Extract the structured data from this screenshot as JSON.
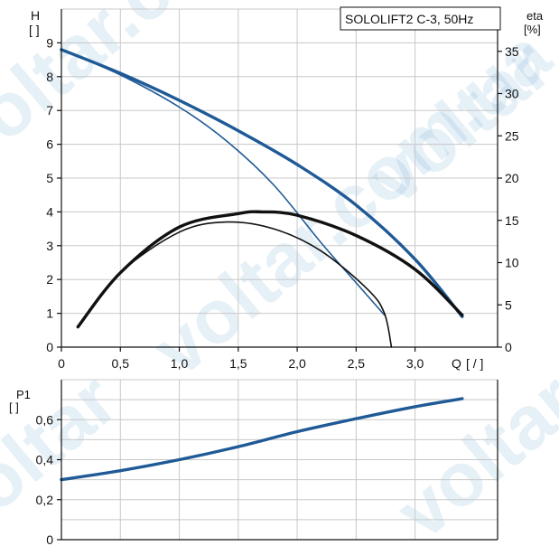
{
  "colors": {
    "blue": "#1f5a96",
    "black": "#111111",
    "grid": "#c8c8c8",
    "watermark": "#4a90c8"
  },
  "watermark_text": "voltar.com.ua",
  "chart_data": [
    {
      "type": "line",
      "title": "SOLOLIFT2 C-3, 50Hz",
      "xlabel": "Q",
      "xunit": "[ / ]",
      "ylabel": "H",
      "yunit": "[ ]",
      "y2label": "eta",
      "y2unit": "[%]",
      "xlim": [
        0,
        3.7
      ],
      "ylim": [
        0,
        10
      ],
      "y2lim": [
        0,
        40
      ],
      "x_ticks": [
        "0",
        "0,5",
        "1,0",
        "1,5",
        "2,0",
        "2,5",
        "3,0"
      ],
      "y_ticks": [
        "0",
        "1",
        "2",
        "3",
        "4",
        "5",
        "6",
        "7",
        "8",
        "9"
      ],
      "y2_ticks": [
        "0",
        "5",
        "10",
        "15",
        "20",
        "25",
        "30",
        "35"
      ],
      "grid": true,
      "series": [
        {
          "axis": "left",
          "color": "#1f5a96",
          "width": 3.4,
          "x": [
            0,
            0.5,
            1.0,
            1.5,
            2.0,
            2.5,
            3.0,
            3.4
          ],
          "y": [
            8.8,
            8.1,
            7.3,
            6.4,
            5.4,
            4.2,
            2.6,
            0.9
          ]
        },
        {
          "axis": "left",
          "color": "#1f5a96",
          "width": 1.6,
          "x": [
            0,
            0.5,
            1.0,
            1.4,
            1.8,
            2.2,
            2.5,
            2.74
          ],
          "y": [
            8.8,
            8.05,
            7.1,
            6.1,
            4.8,
            3.1,
            1.9,
            0.95
          ]
        },
        {
          "axis": "right",
          "color": "#111111",
          "width": 3.4,
          "x": [
            0.14,
            0.5,
            1.0,
            1.5,
            1.7,
            2.0,
            2.5,
            3.0,
            3.4
          ],
          "y": [
            2.4,
            8.8,
            14.2,
            15.8,
            16.0,
            15.6,
            13.2,
            9.2,
            3.8
          ]
        },
        {
          "axis": "right",
          "color": "#111111",
          "width": 1.6,
          "x": [
            0.14,
            0.5,
            1.0,
            1.4,
            1.8,
            2.2,
            2.6,
            2.74,
            2.8
          ],
          "y": [
            2.4,
            8.8,
            13.6,
            14.8,
            14.0,
            11.4,
            6.8,
            4.0,
            0
          ]
        }
      ]
    },
    {
      "type": "line",
      "ylabel": "P1",
      "yunit": "[ ]",
      "xlim": [
        0,
        3.7
      ],
      "ylim": [
        0,
        0.8
      ],
      "y_ticks": [
        "0",
        "0,2",
        "0,4",
        "0,6"
      ],
      "grid": true,
      "series": [
        {
          "axis": "left",
          "color": "#1f5a96",
          "width": 3.4,
          "x": [
            0,
            0.5,
            1.0,
            1.5,
            2.0,
            2.5,
            3.0,
            3.4
          ],
          "y": [
            0.3,
            0.345,
            0.4,
            0.465,
            0.54,
            0.605,
            0.665,
            0.705
          ]
        }
      ]
    }
  ]
}
